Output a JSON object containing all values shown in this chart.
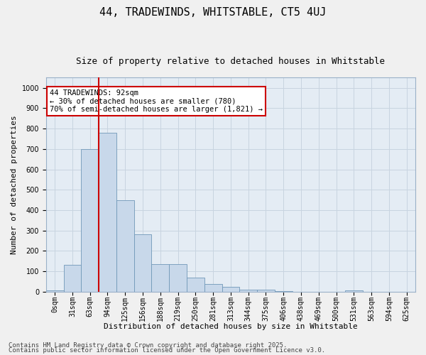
{
  "title1": "44, TRADEWINDS, WHITSTABLE, CT5 4UJ",
  "title2": "Size of property relative to detached houses in Whitstable",
  "xlabel": "Distribution of detached houses by size in Whitstable",
  "ylabel": "Number of detached properties",
  "categories": [
    "0sqm",
    "31sqm",
    "63sqm",
    "94sqm",
    "125sqm",
    "156sqm",
    "188sqm",
    "219sqm",
    "250sqm",
    "281sqm",
    "313sqm",
    "344sqm",
    "375sqm",
    "406sqm",
    "438sqm",
    "469sqm",
    "500sqm",
    "531sqm",
    "563sqm",
    "594sqm",
    "625sqm"
  ],
  "values": [
    5,
    130,
    700,
    780,
    450,
    280,
    135,
    135,
    70,
    38,
    22,
    10,
    10,
    3,
    0,
    0,
    0,
    5,
    0,
    0,
    0
  ],
  "bar_color": "#c8d8ea",
  "bar_edgecolor": "#7098b8",
  "vline_color": "#cc0000",
  "annotation_text": "44 TRADEWINDS: 92sqm\n← 30% of detached houses are smaller (780)\n70% of semi-detached houses are larger (1,821) →",
  "annotation_box_color": "#cc0000",
  "ylim": [
    0,
    1050
  ],
  "yticks": [
    0,
    100,
    200,
    300,
    400,
    500,
    600,
    700,
    800,
    900,
    1000
  ],
  "grid_color": "#c8d4e0",
  "bg_color": "#e4ecf4",
  "fig_bg_color": "#f0f0f0",
  "footer1": "Contains HM Land Registry data © Crown copyright and database right 2025.",
  "footer2": "Contains public sector information licensed under the Open Government Licence v3.0.",
  "title1_fontsize": 11,
  "title2_fontsize": 9,
  "xlabel_fontsize": 8,
  "ylabel_fontsize": 8,
  "tick_fontsize": 7,
  "annotation_fontsize": 7.5,
  "footer_fontsize": 6.5
}
